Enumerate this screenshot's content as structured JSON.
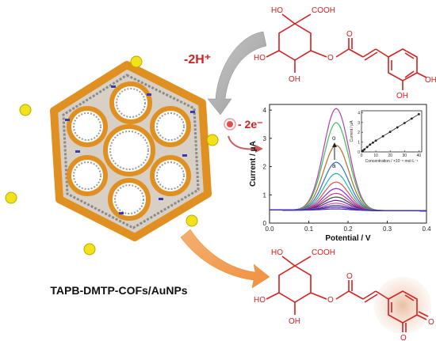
{
  "material_label": "TAPB-DMTP-COFs/AuNPs",
  "reaction": {
    "proton_label": "-2H⁺",
    "electron_label": "- 2e⁻"
  },
  "reactant": {
    "cooh": "COOH",
    "ho_top": "HO",
    "ho_left": "HO",
    "oh_bottom": "OH",
    "o_ester": "O",
    "o_carbonyl": "O",
    "oh_ring_right": "OH",
    "oh_ring_bottom": "OH"
  },
  "product": {
    "cooh": "COOH",
    "ho_top": "HO",
    "ho_left": "HO",
    "oh_bottom": "OH",
    "o_ester": "O",
    "o_carbonyl": "O",
    "o_quinone_right": "O",
    "o_quinone_bottom": "O"
  },
  "chart_data": {
    "type": "line",
    "xlabel": "Potential / V",
    "ylabel": "Current / μA",
    "xlim": [
      0.0,
      0.4
    ],
    "ylim": [
      0,
      4.2
    ],
    "xticks": [
      "0.0",
      "0.1",
      "0.2",
      "0.3",
      "0.4"
    ],
    "yticks": [
      "0",
      "1",
      "2",
      "3",
      "4"
    ],
    "peak_x": 0.17,
    "baseline": 0.45,
    "series": [
      {
        "peak": 4.05,
        "color": "#b03fa8"
      },
      {
        "peak": 3.55,
        "color": "#3fbf5a"
      },
      {
        "peak": 2.75,
        "color": "#b07020"
      },
      {
        "peak": 2.15,
        "color": "#2f6fd0"
      },
      {
        "peak": 1.75,
        "color": "#27b0b0"
      },
      {
        "peak": 1.45,
        "color": "#e05050"
      },
      {
        "peak": 1.22,
        "color": "#8a2be2"
      },
      {
        "peak": 1.05,
        "color": "#c04080"
      },
      {
        "peak": 0.92,
        "color": "#404040"
      },
      {
        "peak": 0.8,
        "color": "#5a2aa8"
      },
      {
        "peak": 0.7,
        "color": "#d84f9f"
      },
      {
        "peak": 0.62,
        "color": "#1f3fa0"
      },
      {
        "peak": 0.56,
        "color": "#7b1fa2"
      },
      {
        "peak": 0.5,
        "color": "#3030c0"
      }
    ],
    "arrow_top": "o",
    "arrow_bottom": "a",
    "inset": {
      "xlabel": "Concentration / ×10⁻⁶ mol·L⁻¹",
      "ylabel": "Current / μA",
      "xticks": [
        "0",
        "10",
        "20",
        "30",
        "40"
      ],
      "yticks": [
        "0",
        "1",
        "2",
        "3",
        "4"
      ],
      "xlim": [
        0,
        42
      ],
      "ylim": [
        0,
        4.2
      ],
      "x": [
        0.5,
        1,
        2,
        4,
        6,
        8,
        10,
        15,
        20,
        25,
        30,
        35,
        40
      ],
      "y": [
        0.05,
        0.12,
        0.25,
        0.5,
        0.75,
        0.95,
        1.15,
        1.6,
        2.05,
        2.5,
        2.95,
        3.4,
        3.85
      ]
    }
  }
}
